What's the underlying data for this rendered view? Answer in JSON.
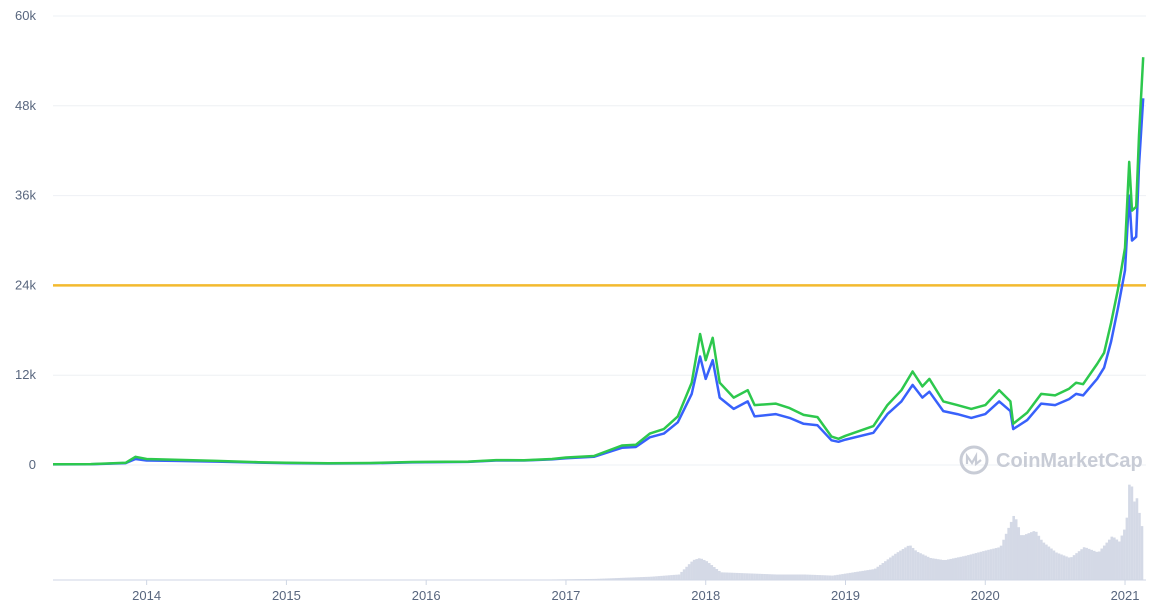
{
  "chart_data": {
    "type": "line",
    "watermark": "CoinMarketCap",
    "y_ticks": [
      "0",
      "12k",
      "24k",
      "36k",
      "48k",
      "60k"
    ],
    "y_tick_values": [
      0,
      12000,
      24000,
      36000,
      48000,
      60000
    ],
    "ylim": [
      0,
      60000
    ],
    "x_ticks": [
      "2014",
      "2015",
      "2016",
      "2017",
      "2018",
      "2019",
      "2020",
      "2021"
    ],
    "x_tick_values": [
      2014,
      2015,
      2016,
      2017,
      2018,
      2019,
      2020,
      2021
    ],
    "xlim": [
      2013.33,
      2021.15
    ],
    "grid": true,
    "reference_line": 24000,
    "colors": {
      "green": "#2dc84d",
      "blue": "#3861fb",
      "reference": "#f3ba2f",
      "volume": "#d4d9e6",
      "grid": "#eef0f4",
      "axis_text": "#58667e",
      "watermark": "#c8ccd6"
    },
    "series": [
      {
        "color": "green",
        "x": [
          2013.33,
          2013.6,
          2013.85,
          2013.92,
          2014.0,
          2014.2,
          2014.5,
          2014.8,
          2015.0,
          2015.3,
          2015.6,
          2015.9,
          2016.0,
          2016.3,
          2016.5,
          2016.7,
          2016.9,
          2017.0,
          2017.2,
          2017.4,
          2017.5,
          2017.6,
          2017.7,
          2017.8,
          2017.9,
          2017.96,
          2018.0,
          2018.05,
          2018.1,
          2018.2,
          2018.3,
          2018.35,
          2018.5,
          2018.6,
          2018.7,
          2018.8,
          2018.9,
          2018.95,
          2019.0,
          2019.2,
          2019.3,
          2019.4,
          2019.48,
          2019.55,
          2019.6,
          2019.7,
          2019.8,
          2019.9,
          2020.0,
          2020.1,
          2020.18,
          2020.2,
          2020.3,
          2020.4,
          2020.5,
          2020.6,
          2020.65,
          2020.7,
          2020.8,
          2020.85,
          2020.9,
          2020.95,
          2021.0,
          2021.03,
          2021.05,
          2021.08,
          2021.1,
          2021.13
        ],
        "values": [
          100,
          120,
          300,
          1100,
          800,
          700,
          550,
          380,
          300,
          240,
          270,
          400,
          420,
          460,
          650,
          640,
          800,
          1000,
          1200,
          2600,
          2700,
          4200,
          4800,
          6500,
          11000,
          17500,
          14000,
          17000,
          11000,
          9000,
          10000,
          8000,
          8200,
          7600,
          6700,
          6400,
          3800,
          3500,
          3900,
          5200,
          8000,
          10000,
          12500,
          10500,
          11500,
          8500,
          8000,
          7500,
          8000,
          10000,
          8500,
          5500,
          7000,
          9500,
          9300,
          10200,
          11000,
          10800,
          13500,
          15000,
          19000,
          23500,
          29000,
          40500,
          34000,
          34500,
          44000,
          54500
        ]
      },
      {
        "color": "blue",
        "x": [
          2013.33,
          2013.6,
          2013.85,
          2013.92,
          2014.0,
          2014.2,
          2014.5,
          2014.8,
          2015.0,
          2015.3,
          2015.6,
          2015.9,
          2016.0,
          2016.3,
          2016.5,
          2016.7,
          2016.9,
          2017.0,
          2017.2,
          2017.4,
          2017.5,
          2017.6,
          2017.7,
          2017.8,
          2017.9,
          2017.96,
          2018.0,
          2018.05,
          2018.1,
          2018.2,
          2018.3,
          2018.35,
          2018.5,
          2018.6,
          2018.7,
          2018.8,
          2018.9,
          2018.95,
          2019.0,
          2019.2,
          2019.3,
          2019.4,
          2019.48,
          2019.55,
          2019.6,
          2019.7,
          2019.8,
          2019.9,
          2020.0,
          2020.1,
          2020.18,
          2020.2,
          2020.3,
          2020.4,
          2020.5,
          2020.6,
          2020.65,
          2020.7,
          2020.8,
          2020.85,
          2020.9,
          2020.95,
          2021.0,
          2021.03,
          2021.05,
          2021.08,
          2021.1,
          2021.13
        ],
        "values": [
          80,
          100,
          250,
          800,
          600,
          550,
          450,
          320,
          250,
          200,
          230,
          350,
          370,
          420,
          600,
          600,
          750,
          900,
          1100,
          2300,
          2400,
          3700,
          4200,
          5700,
          9500,
          14500,
          11500,
          14000,
          9000,
          7500,
          8500,
          6500,
          6800,
          6300,
          5500,
          5300,
          3300,
          3100,
          3400,
          4300,
          6800,
          8500,
          10700,
          9000,
          9800,
          7200,
          6800,
          6300,
          6800,
          8500,
          7200,
          4800,
          6000,
          8200,
          8000,
          8800,
          9500,
          9300,
          11500,
          13000,
          16500,
          21000,
          26000,
          36000,
          30000,
          30500,
          40000,
          49000
        ]
      }
    ],
    "volume": {
      "x": [
        2016.9,
        2017.2,
        2017.4,
        2017.6,
        2017.8,
        2017.9,
        2017.95,
        2018.0,
        2018.1,
        2018.3,
        2018.5,
        2018.7,
        2018.9,
        2019.0,
        2019.2,
        2019.35,
        2019.45,
        2019.5,
        2019.6,
        2019.7,
        2019.85,
        2020.0,
        2020.1,
        2020.2,
        2020.25,
        2020.35,
        2020.4,
        2020.5,
        2020.6,
        2020.7,
        2020.8,
        2020.9,
        2020.95,
        2021.0,
        2021.03,
        2021.05,
        2021.08,
        2021.1,
        2021.13
      ],
      "values": [
        0.5,
        1,
        2,
        3,
        5,
        18,
        20,
        17,
        7,
        6,
        5,
        5,
        4,
        6,
        10,
        24,
        32,
        26,
        20,
        18,
        22,
        27,
        30,
        60,
        40,
        45,
        35,
        25,
        20,
        30,
        25,
        40,
        35,
        50,
        100,
        70,
        75,
        55,
        40
      ]
    }
  }
}
